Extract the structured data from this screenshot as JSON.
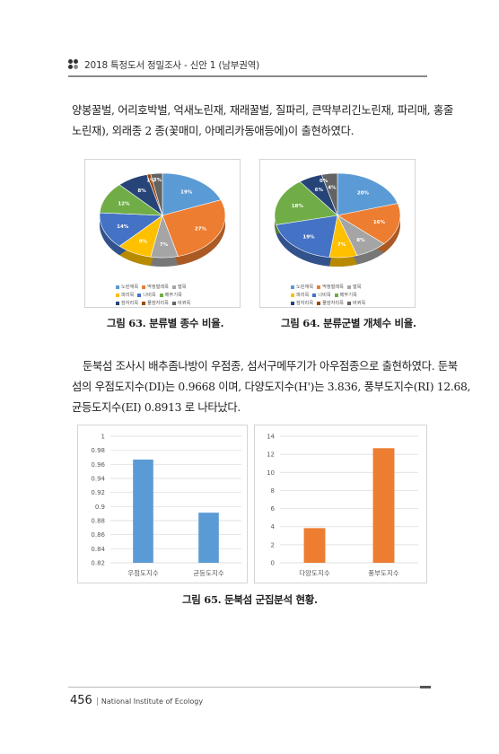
{
  "header": {
    "title": "2018 특정도서 정밀조사 - 신안 1 (남부권역)"
  },
  "paragraphs": {
    "p1": {
      "line1": "양봉꿀벌, 어리호박벌, 억새노린재, 재래꿀벌, 질파리, 큰딱부리긴노린재, 파리매, 홍줄",
      "line2": "노린재), 외래종 2 종(꽃매미, 아메리카동애등에)이 출현하였다."
    },
    "p2": {
      "line1": "둔북섬 조사시 배추좀나방이 우점종, 섬서구메뚜기가 아우점종으로 출현하였다. 둔북",
      "line2": "섬의 우점도지수(DI)는 0.9668 이며, 다양도지수(H')는 3.836, 풍부도지수(RI) 12.68,",
      "line3": "균등도지수(EI) 0.8913 로 나타났다."
    }
  },
  "figures": {
    "fig63": {
      "caption": "그림 63. 분류별 종수 비율."
    },
    "fig64": {
      "caption": "그림 64. 분류군별 개체수 비율."
    },
    "fig65": {
      "caption": "그림 65. 둔북섬 군집분석 현황."
    }
  },
  "footer": {
    "page": "456",
    "separator": "|",
    "org": "National Institute of Ecology"
  },
  "chart_data": [
    {
      "type": "pie",
      "categories": [
        "노린재목",
        "딱정벌레목",
        "벌목",
        "파리목",
        "나비목",
        "메뚜기목",
        "잠자리목",
        "풀잠자리목",
        "바퀴목"
      ],
      "values": [
        19,
        27,
        7,
        9,
        14,
        12,
        8,
        1,
        3
      ],
      "labels": [
        "19%",
        "27%",
        "7%",
        "9%",
        "14%",
        "12%",
        "8%",
        "1%",
        "3%"
      ],
      "colors": [
        "#5b9bd5",
        "#ed7d31",
        "#a5a5a5",
        "#ffc000",
        "#4472c4",
        "#70ad47",
        "#264478",
        "#9e480e",
        "#636363"
      ],
      "legend": "bottom"
    },
    {
      "type": "pie",
      "categories": [
        "노린재목",
        "딱정벌레목",
        "벌목",
        "파리목",
        "나비목",
        "메뚜기목",
        "잠자리목",
        "풀잠자리목",
        "바퀴목"
      ],
      "values": [
        20,
        16,
        8,
        7,
        19,
        18,
        6,
        0,
        4
      ],
      "labels": [
        "20%",
        "16%",
        "8%",
        "7%",
        "19%",
        "18%",
        "6%",
        "0%",
        "4%"
      ],
      "colors": [
        "#5b9bd5",
        "#ed7d31",
        "#a5a5a5",
        "#ffc000",
        "#4472c4",
        "#70ad47",
        "#264478",
        "#9e480e",
        "#636363"
      ],
      "legend": "bottom"
    },
    {
      "type": "bar",
      "categories": [
        "우점도지수",
        "균등도지수"
      ],
      "values": [
        0.9668,
        0.8913
      ],
      "ylim": [
        0.82,
        1
      ],
      "yticks": [
        "1",
        "0.98",
        "0.96",
        "0.94",
        "0.92",
        "0.9",
        "0.88",
        "0.86",
        "0.84",
        "0.82"
      ],
      "grid": true,
      "color": "#5b9bd5"
    },
    {
      "type": "bar",
      "categories": [
        "다양도지수",
        "풍부도지수"
      ],
      "values": [
        3.836,
        12.68
      ],
      "ylim": [
        0,
        14
      ],
      "yticks": [
        "14",
        "12",
        "10",
        "8",
        "6",
        "4",
        "2",
        "0"
      ],
      "grid": true,
      "color": "#ed7d31"
    }
  ]
}
